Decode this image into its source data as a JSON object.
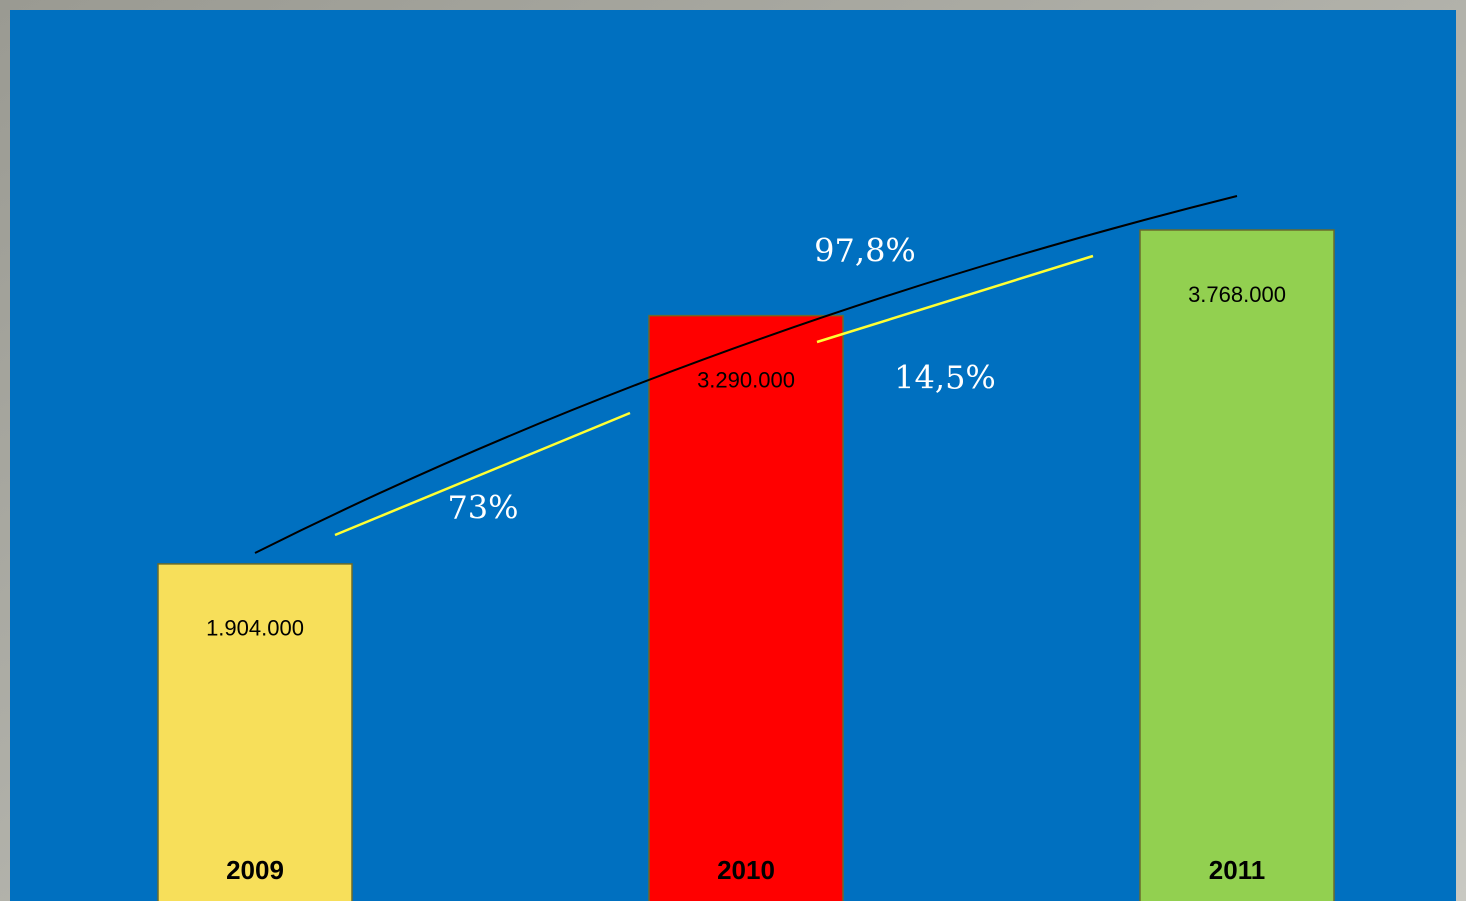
{
  "chart_data": {
    "type": "bar",
    "categories": [
      "2009",
      "2010",
      "2011"
    ],
    "values": [
      1904000,
      3290000,
      3768000
    ],
    "value_labels": [
      "1.904.000",
      "3.290.000",
      "3.768.000"
    ],
    "colors": [
      "#f7df5a",
      "#ff0000",
      "#92d050"
    ],
    "annotations": [
      "73%",
      "97,8%",
      "14,5%"
    ]
  }
}
